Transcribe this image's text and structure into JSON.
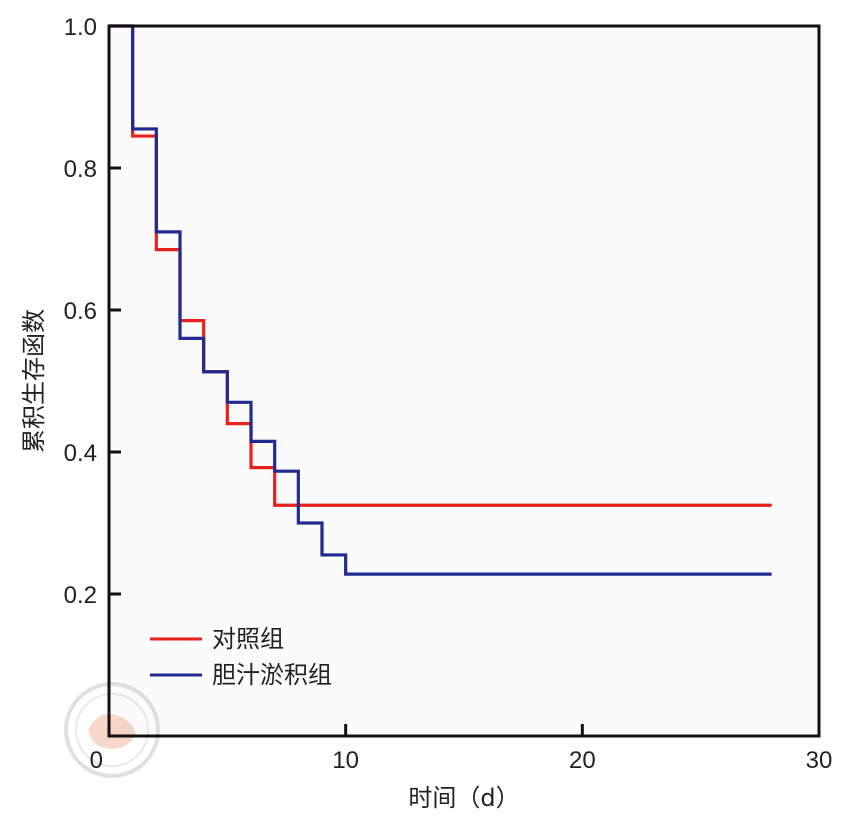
{
  "chart_data": {
    "type": "line",
    "step": true,
    "xlabel": "时间（d）",
    "ylabel": "累积生存函数",
    "xlim": [
      0,
      30
    ],
    "ylim": [
      0,
      1.0
    ],
    "x_ticks": [
      "0",
      "10",
      "20",
      "30"
    ],
    "y_ticks": [
      "0.2",
      "0.4",
      "0.6",
      "0.8",
      "1.0"
    ],
    "grid": false,
    "legend_position": "bottom-left",
    "series": [
      {
        "name": "对照组",
        "color": "#e8211d",
        "x": [
          0,
          1,
          2,
          3,
          4,
          5,
          6,
          7,
          28
        ],
        "y": [
          1.0,
          0.845,
          0.685,
          0.585,
          0.513,
          0.44,
          0.378,
          0.325,
          0.325
        ]
      },
      {
        "name": "胆汁淤积组",
        "color": "#1f2b8f",
        "x": [
          0,
          1,
          2,
          3,
          4,
          5,
          6,
          7,
          8,
          9,
          10,
          28
        ],
        "y": [
          1.0,
          0.855,
          0.71,
          0.56,
          0.513,
          0.47,
          0.415,
          0.373,
          0.3,
          0.255,
          0.228,
          0.228
        ]
      }
    ]
  }
}
